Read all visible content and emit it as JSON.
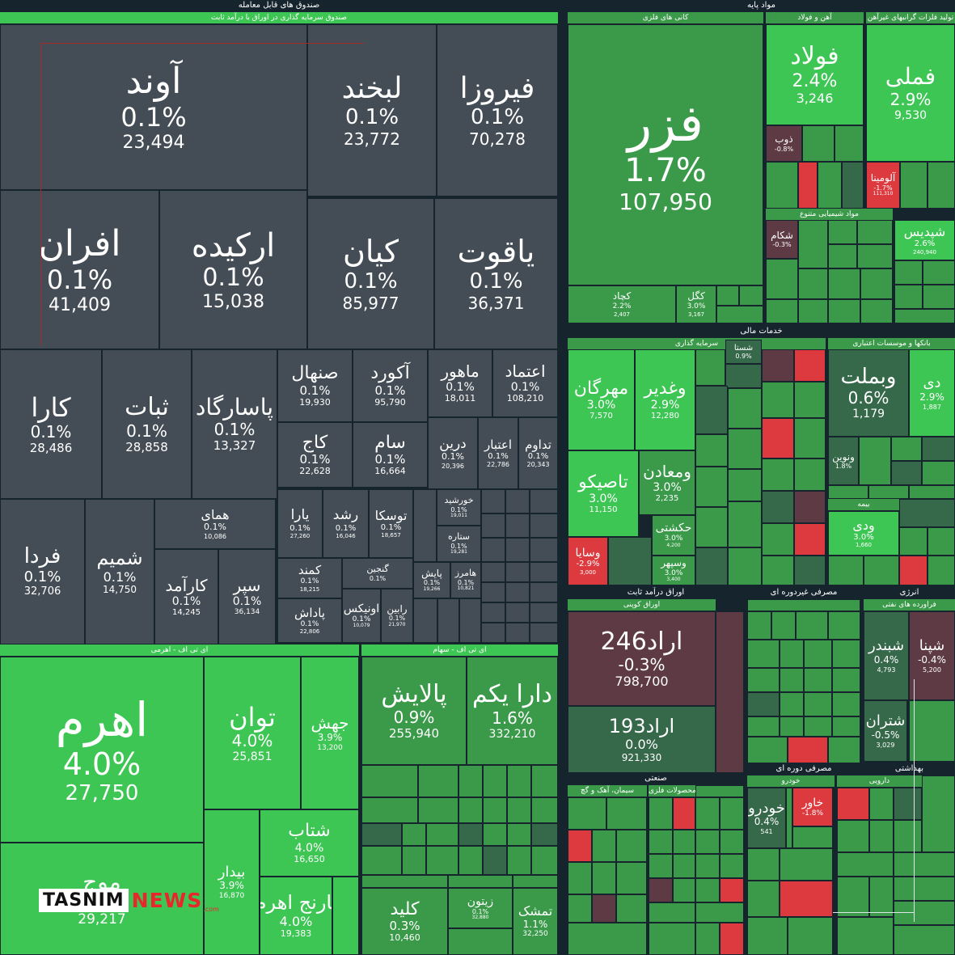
{
  "sectors": [
    {
      "id": "s1",
      "title": "صندوق های قابل معامله"
    },
    {
      "id": "s2",
      "title": "مواد پایه"
    },
    {
      "id": "s3",
      "title": "خدمات مالی"
    },
    {
      "id": "s4",
      "title": "اوراق درآمد ثابت"
    },
    {
      "id": "s5",
      "title": "مصرفی غیردوره ای"
    },
    {
      "id": "s6",
      "title": "صنعتی"
    },
    {
      "id": "s7",
      "title": "مصرفی دوره ای"
    },
    {
      "id": "s8",
      "title": "بهداشتی"
    },
    {
      "id": "s9",
      "title": "انرژی"
    }
  ],
  "groups": [
    {
      "id": "g1",
      "title": "صندوق سرمایه گذاری در اوراق با درآمد ثابت"
    },
    {
      "id": "g2",
      "title": "ای تی اف - اهرمی"
    },
    {
      "id": "g3",
      "title": "ای تی اف - سهام"
    },
    {
      "id": "g4",
      "title": "کانی های فلزی"
    },
    {
      "id": "g5",
      "title": "آهن و فولاد"
    },
    {
      "id": "g6",
      "title": "تولید فلزات گرانبهای غیرآهن"
    },
    {
      "id": "g7",
      "title": "مواد شیمیایی متنوع"
    },
    {
      "id": "g8",
      "title": "سرمایه گذاری"
    },
    {
      "id": "g9",
      "title": "بانکها و موسسات اعتباری"
    },
    {
      "id": "g10",
      "title": "بیمه"
    },
    {
      "id": "g11",
      "title": "اوراق کوپنی"
    },
    {
      "id": "g12",
      "title": "فراورده های نفتی"
    },
    {
      "id": "g13",
      "title": "خودرو"
    },
    {
      "id": "g14",
      "title": "دارویی"
    },
    {
      "id": "g15",
      "title": "سیمان، آهک و گچ"
    },
    {
      "id": "g16",
      "title": "محصولات فلزی"
    }
  ],
  "chart_data": {
    "type": "treemap",
    "title": "",
    "colors": {
      "gray": "#444d55",
      "green_light": "#3ec655",
      "green": "#3a9a49",
      "green_dark": "#36684a",
      "red": "#dc3a3f",
      "red_dark": "#5e3b44",
      "background": "#16242e"
    },
    "tiles": [
      {
        "id": "t1",
        "name": "آوند",
        "change": "0.1%",
        "value": "23,494"
      },
      {
        "id": "t2",
        "name": "لبخند",
        "change": "0.1%",
        "value": "23,772"
      },
      {
        "id": "t3",
        "name": "فیروزا",
        "change": "0.1%",
        "value": "70,278"
      },
      {
        "id": "t4",
        "name": "افران",
        "change": "0.1%",
        "value": "41,409"
      },
      {
        "id": "t5",
        "name": "ارکیده",
        "change": "0.1%",
        "value": "15,038"
      },
      {
        "id": "t6",
        "name": "کیان",
        "change": "0.1%",
        "value": "85,977"
      },
      {
        "id": "t7",
        "name": "یاقوت",
        "change": "0.1%",
        "value": "36,371"
      },
      {
        "id": "t8",
        "name": "کارا",
        "change": "0.1%",
        "value": "28,486"
      },
      {
        "id": "t9",
        "name": "ثبات",
        "change": "0.1%",
        "value": "28,858"
      },
      {
        "id": "t10",
        "name": "پاسارگاد",
        "change": "0.1%",
        "value": "13,327"
      },
      {
        "id": "t11",
        "name": "صنهال",
        "change": "0.1%",
        "value": "19,930"
      },
      {
        "id": "t12",
        "name": "آکورد",
        "change": "0.1%",
        "value": "95,790"
      },
      {
        "id": "t13",
        "name": "ماهور",
        "change": "0.1%",
        "value": "18,011"
      },
      {
        "id": "t14",
        "name": "اعتماد",
        "change": "0.1%",
        "value": "108,210"
      },
      {
        "id": "t15",
        "name": "کاج",
        "change": "0.1%",
        "value": "22,628"
      },
      {
        "id": "t16",
        "name": "سام",
        "change": "0.1%",
        "value": "16,664"
      },
      {
        "id": "t17",
        "name": "درین",
        "change": "0.1%",
        "value": "20,396"
      },
      {
        "id": "t18",
        "name": "اعتبار",
        "change": "0.1%",
        "value": "22,786"
      },
      {
        "id": "t19",
        "name": "تداوم",
        "change": "0.1%",
        "value": "20,343"
      },
      {
        "id": "t20",
        "name": "فردا",
        "change": "0.1%",
        "value": "32,706"
      },
      {
        "id": "t21",
        "name": "شمیم",
        "change": "0.1%",
        "value": "14,750"
      },
      {
        "id": "t22",
        "name": "همای",
        "change": "0.1%",
        "value": "10,086"
      },
      {
        "id": "t23",
        "name": "کارآمد",
        "change": "0.1%",
        "value": "14,245"
      },
      {
        "id": "t24",
        "name": "سپر",
        "change": "0.1%",
        "value": "36,134"
      },
      {
        "id": "t25",
        "name": "یارا",
        "change": "0.1%",
        "value": "27,260"
      },
      {
        "id": "t26",
        "name": "رشد",
        "change": "0.1%",
        "value": "16,046"
      },
      {
        "id": "t27",
        "name": "توسکا",
        "change": "0.1%",
        "value": "18,657"
      },
      {
        "id": "t28",
        "name": "خورشید",
        "change": "0.1%",
        "value": "19,011"
      },
      {
        "id": "t29",
        "name": "ستاره",
        "change": "0.1%",
        "value": "19,281"
      },
      {
        "id": "t30",
        "name": "کمند",
        "change": "0.1%",
        "value": "18,215"
      },
      {
        "id": "t31",
        "name": "پاداش",
        "change": "0.1%",
        "value": "22,806"
      },
      {
        "id": "t32",
        "name": "گنجین",
        "change": "0.1%",
        "value": ""
      },
      {
        "id": "t33",
        "name": "اونیکس",
        "change": "0.1%",
        "value": "10,079"
      },
      {
        "id": "t34",
        "name": "رابین",
        "change": "0.1%",
        "value": "21,970"
      },
      {
        "id": "t35",
        "name": "پایش",
        "change": "0.1%",
        "value": "19,266"
      },
      {
        "id": "t36",
        "name": "هامرز",
        "change": "0.1%",
        "value": "10,821"
      },
      {
        "id": "t37",
        "name": "اهرم",
        "change": "4.0%",
        "value": "27,750"
      },
      {
        "id": "t38",
        "name": "توان",
        "change": "4.0%",
        "value": "25,851"
      },
      {
        "id": "t39",
        "name": "جهش",
        "change": "3.9%",
        "value": "13,200"
      },
      {
        "id": "t40",
        "name": "شتاب",
        "change": "4.0%",
        "value": "16,650"
      },
      {
        "id": "t41",
        "name": "بیدار",
        "change": "3.9%",
        "value": "16,870"
      },
      {
        "id": "t42",
        "name": "نارنج اهرم",
        "change": "4.0%",
        "value": "19,383"
      },
      {
        "id": "t43",
        "name": "موج",
        "change": "4.0%",
        "value": "29,217"
      },
      {
        "id": "t44",
        "name": "پالایش",
        "change": "0.9%",
        "value": "255,940"
      },
      {
        "id": "t45",
        "name": "دارا یکم",
        "change": "1.6%",
        "value": "332,210"
      },
      {
        "id": "t46",
        "name": "کلید",
        "change": "0.3%",
        "value": "10,460"
      },
      {
        "id": "t47",
        "name": "زیتون",
        "change": "0.1%",
        "value": "32,880"
      },
      {
        "id": "t48",
        "name": "تمشک",
        "change": "1.1%",
        "value": "32,250"
      },
      {
        "id": "t49",
        "name": "فزر",
        "change": "1.7%",
        "value": "107,950"
      },
      {
        "id": "t50",
        "name": "فولاد",
        "change": "2.4%",
        "value": "3,246"
      },
      {
        "id": "t51",
        "name": "فملی",
        "change": "2.9%",
        "value": "9,530"
      },
      {
        "id": "t52",
        "name": "ذوب",
        "change": "-0.8%",
        "value": ""
      },
      {
        "id": "t53",
        "name": "آلومینا",
        "change": "-1.7%",
        "value": "111,310"
      },
      {
        "id": "t54",
        "name": "کچاد",
        "change": "2.2%",
        "value": "2,407"
      },
      {
        "id": "t55",
        "name": "کگل",
        "change": "3.0%",
        "value": "3,167"
      },
      {
        "id": "t56",
        "name": "شکام",
        "change": "-0.3%",
        "value": ""
      },
      {
        "id": "t57",
        "name": "شپدیس",
        "change": "2.6%",
        "value": "240,940"
      },
      {
        "id": "t58",
        "name": "مهرگان",
        "change": "3.0%",
        "value": "7,570"
      },
      {
        "id": "t59",
        "name": "وغدیر",
        "change": "2.9%",
        "value": "12,280"
      },
      {
        "id": "t60",
        "name": "تاصیکو",
        "change": "3.0%",
        "value": "11,150"
      },
      {
        "id": "t61",
        "name": "ومعادن",
        "change": "3.0%",
        "value": "2,235"
      },
      {
        "id": "t62",
        "name": "وسایا",
        "change": "-2.9%",
        "value": "3,000"
      },
      {
        "id": "t63",
        "name": "حکشتی",
        "change": "3.0%",
        "value": "4,200"
      },
      {
        "id": "t64",
        "name": "وسپهر",
        "change": "3.0%",
        "value": "3,400"
      },
      {
        "id": "t65",
        "name": "وبملت",
        "change": "0.6%",
        "value": "1,179"
      },
      {
        "id": "t66",
        "name": "دی",
        "change": "2.9%",
        "value": "1,887"
      },
      {
        "id": "t67",
        "name": "ونوین",
        "change": "1.8%",
        "value": ""
      },
      {
        "id": "t68",
        "name": "ودی",
        "change": "3.0%",
        "value": "1,660"
      },
      {
        "id": "t69",
        "name": "اراد246",
        "change": "-0.3%",
        "value": "798,700"
      },
      {
        "id": "t70",
        "name": "اراد193",
        "change": "0.0%",
        "value": "921,330"
      },
      {
        "id": "t71",
        "name": "شبندر",
        "change": "0.4%",
        "value": "4,793"
      },
      {
        "id": "t72",
        "name": "شپنا",
        "change": "-0.4%",
        "value": "5,200"
      },
      {
        "id": "t73",
        "name": "شتران",
        "change": "-0.5%",
        "value": "3,029"
      },
      {
        "id": "t74",
        "name": "خودرو",
        "change": "0.4%",
        "value": "541"
      },
      {
        "id": "t75",
        "name": "خاور",
        "change": "-1.8%",
        "value": ""
      },
      {
        "id": "t76",
        "name": "شستا",
        "change": "0.9%",
        "value": ""
      }
    ]
  },
  "logo": {
    "brand": "TASNIM",
    "news": "NEWS",
    "com": ".com"
  }
}
